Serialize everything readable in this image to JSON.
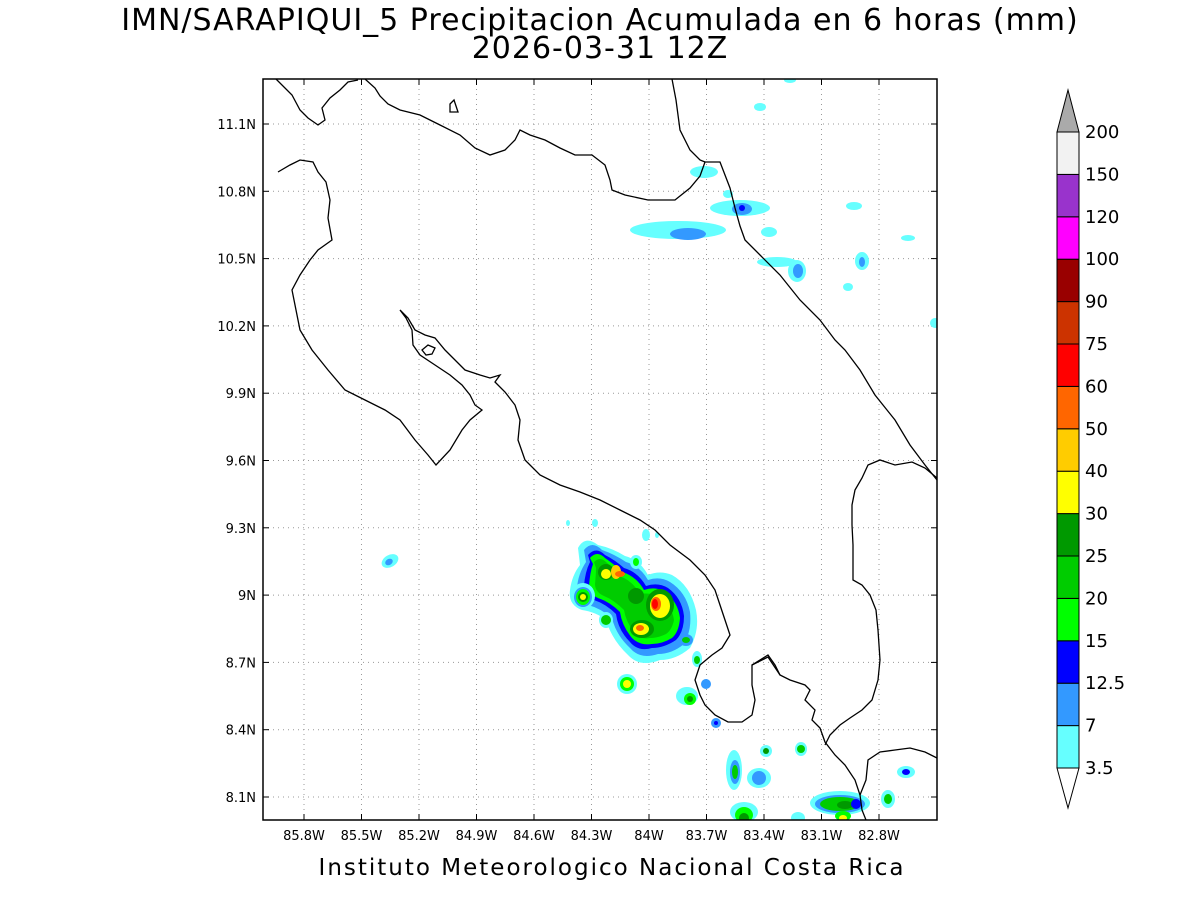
{
  "header": {
    "title": "IMN/SARAPIQUI_5 Precipitacion Acumulada en 6 horas (mm)",
    "subtitle": "2026-03-31 12Z"
  },
  "footer": {
    "credit": "Instituto Meteorologico Nacional Costa Rica"
  },
  "map": {
    "lat_ticks": [
      "11.1N",
      "10.8N",
      "10.5N",
      "10.2N",
      "9.9N",
      "9.6N",
      "9.3N",
      "9N",
      "8.7N",
      "8.4N",
      "8.1N"
    ],
    "lon_ticks": [
      "85.8W",
      "85.5W",
      "85.2W",
      "84.9W",
      "84.6W",
      "84.3W",
      "84W",
      "83.7W",
      "83.4W",
      "83.1W",
      "82.8W"
    ],
    "grid": "dotted",
    "coastline_color": "#000000"
  },
  "colorbar": {
    "levels": [
      {
        "label": "3.5",
        "color": "#66ffff"
      },
      {
        "label": "7",
        "color": "#3399ff"
      },
      {
        "label": "12.5",
        "color": "#0000ff"
      },
      {
        "label": "15",
        "color": "#00ff00"
      },
      {
        "label": "20",
        "color": "#00cc00"
      },
      {
        "label": "25",
        "color": "#009900"
      },
      {
        "label": "30",
        "color": "#ffff00"
      },
      {
        "label": "40",
        "color": "#ffcc00"
      },
      {
        "label": "50",
        "color": "#ff6600"
      },
      {
        "label": "60",
        "color": "#ff0000"
      },
      {
        "label": "75",
        "color": "#cc3300"
      },
      {
        "label": "90",
        "color": "#990000"
      },
      {
        "label": "100",
        "color": "#ff00ff"
      },
      {
        "label": "120",
        "color": "#9933cc"
      },
      {
        "label": "150",
        "color": "#f2f2f2"
      },
      {
        "label": "200",
        "color": ""
      }
    ],
    "below_color": "#ffffff",
    "above_color": "#aaaaaa"
  }
}
